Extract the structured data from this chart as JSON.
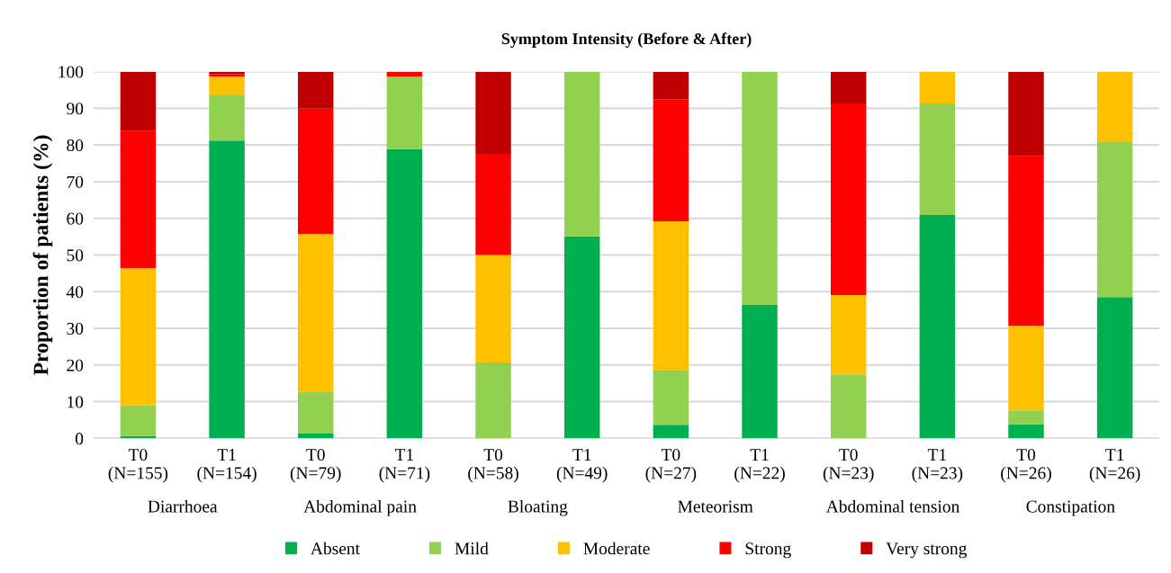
{
  "chart_data": {
    "type": "bar",
    "title": "Symptom Intensity (Before & After)",
    "ylabel": "Proportion of patients (%)",
    "categories": [
      "T0\n(N=155)",
      "T1\n(N=154)",
      "T0\n(N=79)",
      "T1\n(N=71)",
      "T0\n(N=58)",
      "T1\n(N=49)",
      "T0\n(N=27)",
      "T1\n(N=22)",
      "T0\n(N=23)",
      "T1\n(N=23)",
      "T0\n(N=26)",
      "T1\n(N=26)"
    ],
    "annotations": [
      "Diarrhoea",
      "Abdominal pain",
      "Bloating",
      "Meteorism",
      "Abdominal tension",
      "Constipation"
    ],
    "stacked": true,
    "series": [
      {
        "name": "Absent",
        "color": "#00b050",
        "values": [
          0.6,
          81.2,
          1.3,
          78.9,
          0,
          55.1,
          3.7,
          36.4,
          0,
          60.9,
          3.8,
          38.5
        ]
      },
      {
        "name": "Mild",
        "color": "#92d050",
        "values": [
          8.4,
          12.3,
          11.4,
          19.7,
          20.7,
          44.9,
          14.8,
          63.6,
          17.4,
          30.4,
          3.8,
          42.3
        ]
      },
      {
        "name": "Moderate",
        "color": "#ffc000",
        "values": [
          37.4,
          5.2,
          43.0,
          0,
          29.3,
          0,
          40.7,
          0,
          21.7,
          8.7,
          23.1,
          19.2
        ]
      },
      {
        "name": "Strong",
        "color": "#ff0000",
        "values": [
          37.4,
          0.6,
          34.2,
          1.4,
          27.6,
          0,
          33.3,
          0,
          52.2,
          0,
          46.2,
          0
        ]
      },
      {
        "name": "Very strong",
        "color": "#c00000",
        "values": [
          16.1,
          0.6,
          10.1,
          0,
          22.4,
          0,
          7.4,
          0,
          8.7,
          0,
          23.1,
          0
        ]
      }
    ],
    "ylim": [
      0,
      100
    ],
    "yticks": [
      0,
      10,
      20,
      30,
      40,
      50,
      60,
      70,
      80,
      90,
      100
    ],
    "grid": "y",
    "legend": "bottom"
  }
}
